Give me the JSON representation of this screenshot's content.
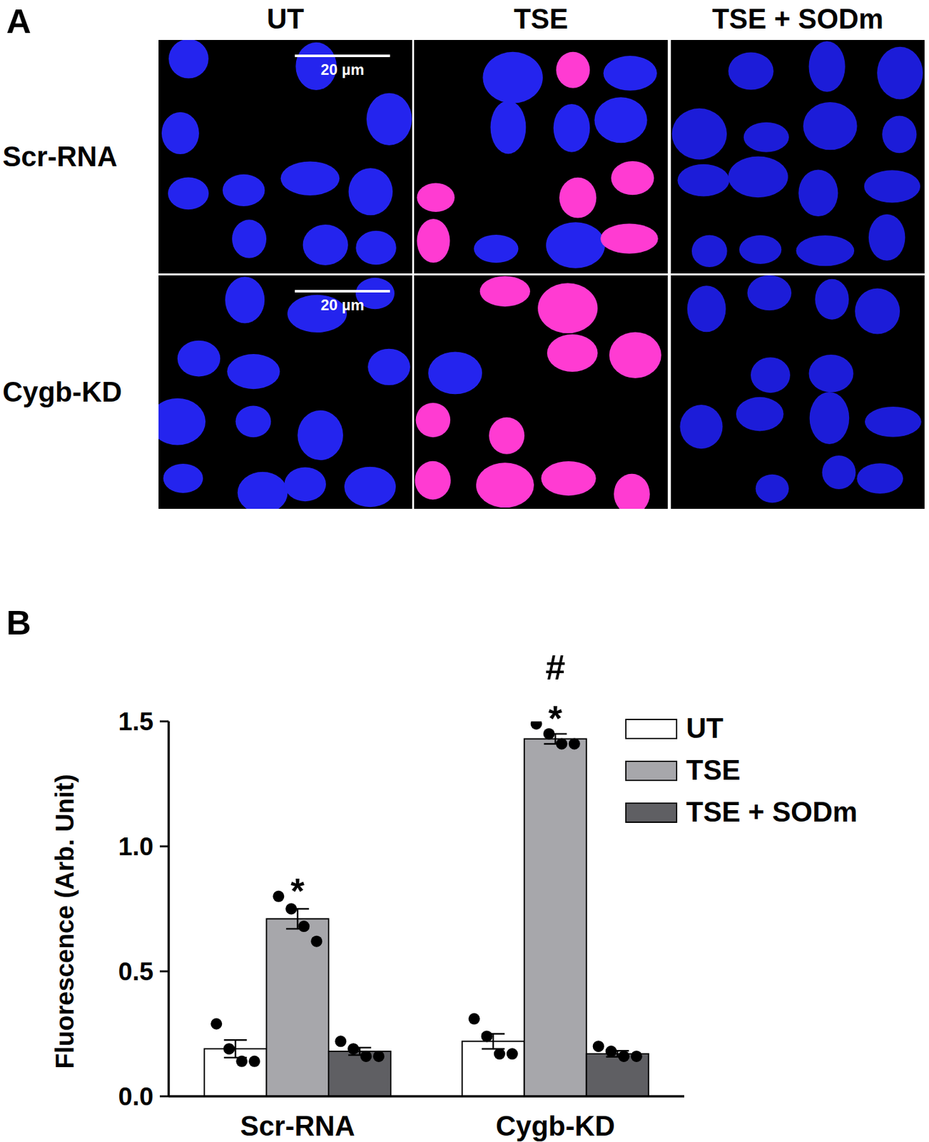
{
  "panel_a": {
    "label": "A",
    "columns": [
      "UT",
      "TSE",
      "TSE + SODm"
    ],
    "rows": [
      "Scr-RNA",
      "Cygb-KD"
    ],
    "scale_bar": "20 µm"
  },
  "panel_b": {
    "label": "B"
  },
  "chart_data": {
    "type": "bar",
    "y_label": "Fluorescence (Arb. Unit)",
    "categories": [
      "Scr-RNA",
      "Cygb-KD"
    ],
    "series": [
      {
        "name": "UT",
        "color": "#ffffff",
        "values": [
          0.19,
          0.22
        ],
        "errors": [
          0.035,
          0.03
        ],
        "points": [
          [
            0.29,
            0.19,
            0.14,
            0.14
          ],
          [
            0.31,
            0.24,
            0.17,
            0.17
          ]
        ]
      },
      {
        "name": "TSE",
        "color": "#a7a7ab",
        "values": [
          0.71,
          1.43
        ],
        "errors": [
          0.04,
          0.02
        ],
        "points": [
          [
            0.8,
            0.75,
            0.68,
            0.62
          ],
          [
            1.49,
            1.45,
            1.41,
            1.41
          ]
        ]
      },
      {
        "name": "TSE + SODm",
        "color": "#5f5f63",
        "values": [
          0.18,
          0.17
        ],
        "errors": [
          0.015,
          0.012
        ],
        "points": [
          [
            0.22,
            0.19,
            0.16,
            0.16
          ],
          [
            0.2,
            0.18,
            0.16,
            0.16
          ]
        ]
      }
    ],
    "annotations": [
      {
        "text": "*",
        "category": "Scr-RNA",
        "series": "TSE"
      },
      {
        "text": "*",
        "category": "Cygb-KD",
        "series": "TSE"
      },
      {
        "text": "#",
        "category": "Cygb-KD",
        "series": "TSE"
      }
    ],
    "ylim": [
      0,
      1.5
    ],
    "yticks": [
      {
        "value": 0,
        "label": "0.0"
      },
      0.5,
      {
        "value": 1,
        "label": "1.0"
      },
      1.5
    ],
    "grid": false,
    "legend": "top-right"
  }
}
